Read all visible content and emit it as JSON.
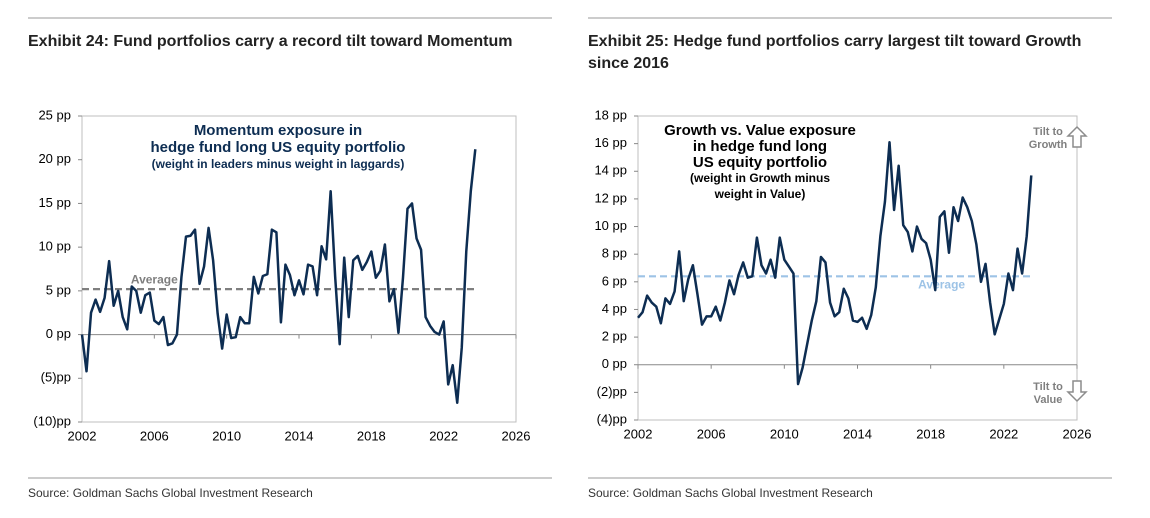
{
  "chart_data": [
    {
      "type": "line",
      "title": "Exhibit 24: Fund portfolios carry a record tilt toward Momentum",
      "source": "Source: Goldman Sachs Global Investment Research",
      "annotation": [
        "Momentum exposure in",
        "hedge fund long US equity portfolio",
        "(weight in leaders minus weight in laggards)"
      ],
      "reference_line": {
        "value": 5.2,
        "label": "Average",
        "color": "#7f7f7f"
      },
      "x": [
        2002,
        2002.25,
        2002.5,
        2002.75,
        2003,
        2003.25,
        2003.5,
        2003.75,
        2004,
        2004.25,
        2004.5,
        2004.75,
        2005,
        2005.25,
        2005.5,
        2005.75,
        2006,
        2006.25,
        2006.5,
        2006.75,
        2007,
        2007.25,
        2007.5,
        2007.75,
        2008,
        2008.25,
        2008.5,
        2008.75,
        2009,
        2009.25,
        2009.5,
        2009.75,
        2010,
        2010.25,
        2010.5,
        2010.75,
        2011,
        2011.25,
        2011.5,
        2011.75,
        2012,
        2012.25,
        2012.5,
        2012.75,
        2013,
        2013.25,
        2013.5,
        2013.75,
        2014,
        2014.25,
        2014.5,
        2014.75,
        2015,
        2015.25,
        2015.5,
        2015.75,
        2016,
        2016.25,
        2016.5,
        2016.75,
        2017,
        2017.25,
        2017.5,
        2017.75,
        2018,
        2018.25,
        2018.5,
        2018.75,
        2019,
        2019.25,
        2019.5,
        2019.75,
        2020,
        2020.25,
        2020.5,
        2020.75,
        2021,
        2021.25,
        2021.5,
        2021.75,
        2022,
        2022.25,
        2022.5,
        2022.75,
        2023,
        2023.25,
        2023.5,
        2023.75
      ],
      "series": [
        {
          "name": "Momentum exposure",
          "color": "#0d2d52",
          "values": [
            0,
            -4.2,
            2.5,
            4,
            2.6,
            4.2,
            8.4,
            3.3,
            5,
            2,
            0.6,
            5.5,
            5,
            2.5,
            4.5,
            4.8,
            1.6,
            1.2,
            2,
            -1.2,
            -1,
            0,
            6.6,
            11.2,
            11.3,
            12,
            5.8,
            7.8,
            12.2,
            8.5,
            2.4,
            -1.6,
            2.3,
            -0.4,
            -0.3,
            2,
            1.3,
            1.3,
            6.6,
            4.7,
            6.7,
            6.9,
            12,
            11.7,
            1.4,
            8,
            6.8,
            4.5,
            6.2,
            4.6,
            8,
            7.8,
            4.5,
            10.1,
            8.6,
            16.4,
            6.6,
            -1.1,
            8.8,
            2,
            8.5,
            9,
            7.4,
            8.3,
            9.5,
            6.5,
            7.3,
            10.3,
            3.8,
            5.2,
            0.2,
            6.5,
            14.4,
            15,
            11,
            9.7,
            2,
            1,
            0.3,
            0,
            1.5,
            -5.7,
            -3.5,
            -7.8,
            -1.5,
            9.5,
            16.4,
            21.2
          ]
        }
      ],
      "xlim": [
        2002,
        2026
      ],
      "xticks": [
        2002,
        2006,
        2010,
        2014,
        2018,
        2022,
        2026
      ],
      "ylim": [
        -10,
        25
      ],
      "yticks": [
        {
          "value": 25,
          "label": "25 pp"
        },
        {
          "value": 20,
          "label": "20 pp"
        },
        {
          "value": 15,
          "label": "15 pp"
        },
        {
          "value": 10,
          "label": "10 pp"
        },
        {
          "value": 5,
          "label": "5 pp"
        },
        {
          "value": 0,
          "label": "0 pp"
        },
        {
          "value": -5,
          "label": "(5)pp"
        },
        {
          "value": -10,
          "label": "(10)pp"
        }
      ],
      "grid": false
    },
    {
      "type": "line",
      "title": "Exhibit 25: Hedge fund portfolios carry largest tilt toward Growth since 2016",
      "source": "Source: Goldman Sachs Global Investment Research",
      "annotation": [
        "Growth vs. Value exposure",
        "in hedge fund long",
        "US equity portfolio",
        "(weight in Growth minus",
        "weight in Value)"
      ],
      "tilt_up": [
        "Tilt to",
        "Growth"
      ],
      "tilt_down": [
        "Tilt to",
        "Value"
      ],
      "reference_line": {
        "value": 6.4,
        "label": "Average",
        "color": "#9dc3e6"
      },
      "x": [
        2002,
        2002.25,
        2002.5,
        2002.75,
        2003,
        2003.25,
        2003.5,
        2003.75,
        2004,
        2004.25,
        2004.5,
        2004.75,
        2005,
        2005.25,
        2005.5,
        2005.75,
        2006,
        2006.25,
        2006.5,
        2006.75,
        2007,
        2007.25,
        2007.5,
        2007.75,
        2008,
        2008.25,
        2008.5,
        2008.75,
        2009,
        2009.25,
        2009.5,
        2009.75,
        2010,
        2010.25,
        2010.5,
        2010.75,
        2011,
        2011.25,
        2011.5,
        2011.75,
        2012,
        2012.25,
        2012.5,
        2012.75,
        2013,
        2013.25,
        2013.5,
        2013.75,
        2014,
        2014.25,
        2014.5,
        2014.75,
        2015,
        2015.25,
        2015.5,
        2015.75,
        2016,
        2016.25,
        2016.5,
        2016.75,
        2017,
        2017.25,
        2017.5,
        2017.75,
        2018,
        2018.25,
        2018.5,
        2018.75,
        2019,
        2019.25,
        2019.5,
        2019.75,
        2020,
        2020.25,
        2020.5,
        2020.75,
        2021,
        2021.25,
        2021.5,
        2021.75,
        2022,
        2022.25,
        2022.5,
        2022.75,
        2023,
        2023.25,
        2023.5
      ],
      "series": [
        {
          "name": "Growth vs. Value exposure",
          "color": "#0d2d52",
          "values": [
            3.4,
            3.8,
            5,
            4.5,
            4.2,
            3,
            4.8,
            4.4,
            5.3,
            8.2,
            4.6,
            6.2,
            7.2,
            5.1,
            2.9,
            3.5,
            3.5,
            4.2,
            3.2,
            4.5,
            6.1,
            5.1,
            6.5,
            7.4,
            6.3,
            6.4,
            9.2,
            7.2,
            6.6,
            7.6,
            6.3,
            9.2,
            7.6,
            7.1,
            6.6,
            -1.4,
            -0.2,
            1.5,
            3.2,
            4.6,
            7.8,
            7.4,
            4.5,
            3.5,
            3.8,
            5.5,
            4.8,
            3.2,
            3.1,
            3.4,
            2.6,
            3.6,
            5.6,
            9.3,
            11.8,
            16.1,
            11.2,
            14.4,
            10.1,
            9.6,
            8.2,
            10,
            9.1,
            8.8,
            7.6,
            5.4,
            10.7,
            11.1,
            8.1,
            11.4,
            10.4,
            12.1,
            11.4,
            10.4,
            8.7,
            6,
            7.3,
            4.5,
            2.2,
            3.3,
            4.4,
            6.6,
            5.4,
            8.4,
            6.6,
            9.3,
            13.7
          ]
        }
      ],
      "xlim": [
        2002,
        2026
      ],
      "xticks": [
        2002,
        2006,
        2010,
        2014,
        2018,
        2022,
        2026
      ],
      "ylim": [
        -4,
        18
      ],
      "yticks": [
        {
          "value": 18,
          "label": "18 pp"
        },
        {
          "value": 16,
          "label": "16 pp"
        },
        {
          "value": 14,
          "label": "14 pp"
        },
        {
          "value": 12,
          "label": "12 pp"
        },
        {
          "value": 10,
          "label": "10 pp"
        },
        {
          "value": 8,
          "label": "8 pp"
        },
        {
          "value": 6,
          "label": "6 pp"
        },
        {
          "value": 4,
          "label": "4 pp"
        },
        {
          "value": 2,
          "label": "2 pp"
        },
        {
          "value": 0,
          "label": "0 pp"
        },
        {
          "value": -2,
          "label": "(2)pp"
        },
        {
          "value": -4,
          "label": "(4)pp"
        }
      ],
      "grid": false
    }
  ]
}
